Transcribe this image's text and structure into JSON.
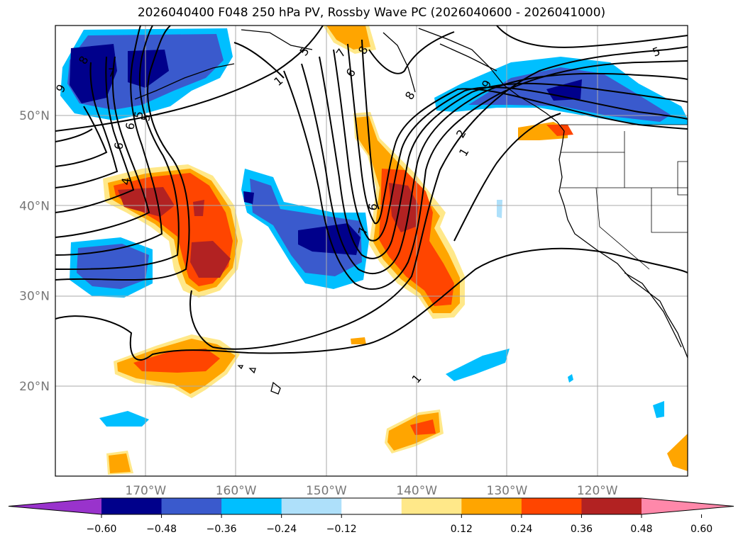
{
  "title": "2026040400 F048 250 hPa PV, Rossby Wave PC (2026040600 - 2026041000)",
  "map": {
    "lon_range": [
      -180,
      -110
    ],
    "lat_range": [
      10,
      60
    ],
    "lon_ticks": [
      {
        "lon": -170,
        "label": "170°W"
      },
      {
        "lon": -160,
        "label": "160°W"
      },
      {
        "lon": -150,
        "label": "150°W"
      },
      {
        "lon": -140,
        "label": "140°W"
      },
      {
        "lon": -130,
        "label": "130°W"
      },
      {
        "lon": -120,
        "label": "120°W"
      }
    ],
    "lat_ticks": [
      {
        "lat": 50,
        "label": "50°N"
      },
      {
        "lat": 40,
        "label": "40°N"
      },
      {
        "lat": 30,
        "label": "30°N"
      },
      {
        "lat": 20,
        "label": "20°N"
      }
    ],
    "gridlines": true
  },
  "colorbar": {
    "ticks": [
      "−0.60",
      "−0.48",
      "−0.36",
      "−0.24",
      "−0.12",
      "0.12",
      "0.24",
      "0.36",
      "0.48",
      "0.60"
    ],
    "colors": [
      "#9933cc",
      "#00008b",
      "#3a5acd",
      "#00bfff",
      "#aee0fa",
      "#ffffff",
      "#ffe889",
      "#ffa500",
      "#ff4500",
      "#b22222",
      "#ff88aa"
    ],
    "extend": "both"
  },
  "contour_labels": [
    "8",
    "7",
    "6",
    "5",
    "1",
    "5",
    "7",
    "8",
    "6",
    "8",
    "9",
    "6",
    "5",
    "4",
    "9",
    "2",
    "1",
    "6",
    "7",
    "1",
    "1",
    "5"
  ],
  "colors": {
    "neg_dark": "#00008b",
    "neg_mid": "#3a5acd",
    "neg_light": "#00bfff",
    "neg_pale": "#aee0fa",
    "pos_pale": "#ffe889",
    "pos_light": "#ffa500",
    "pos_mid": "#ff4500",
    "pos_dark": "#b22222"
  }
}
